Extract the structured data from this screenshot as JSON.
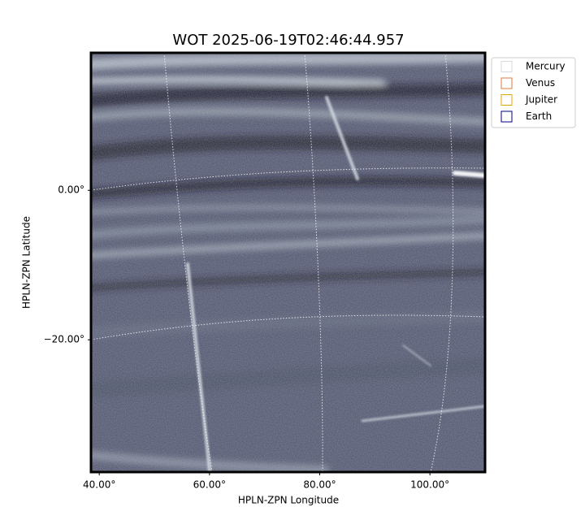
{
  "chart_data": {
    "type": "image",
    "title": "WOT 2025-06-19T02:46:44.957",
    "xlabel": "HPLN-ZPN Longitude",
    "ylabel": "HPLN-ZPN Latitude",
    "xlim": [
      38.5,
      110
    ],
    "ylim": [
      -37.7,
      18.4
    ],
    "xticks": [
      {
        "value": 40,
        "label": "40.00°"
      },
      {
        "value": 60,
        "label": "60.00°"
      },
      {
        "value": 80,
        "label": "80.00°"
      },
      {
        "value": 100,
        "label": "100.00°"
      }
    ],
    "yticks": [
      {
        "value": 0,
        "label": "0.00°"
      },
      {
        "value": -20,
        "label": "−20.00°"
      }
    ],
    "grid": true,
    "legend": "upper right",
    "series": [
      {
        "name": "Mercury",
        "color": "#d9d9d9"
      },
      {
        "name": "Venus",
        "color": "#e07b39"
      },
      {
        "name": "Jupiter",
        "color": "#e0a800"
      },
      {
        "name": "Earth",
        "color": "#000080"
      }
    ]
  }
}
